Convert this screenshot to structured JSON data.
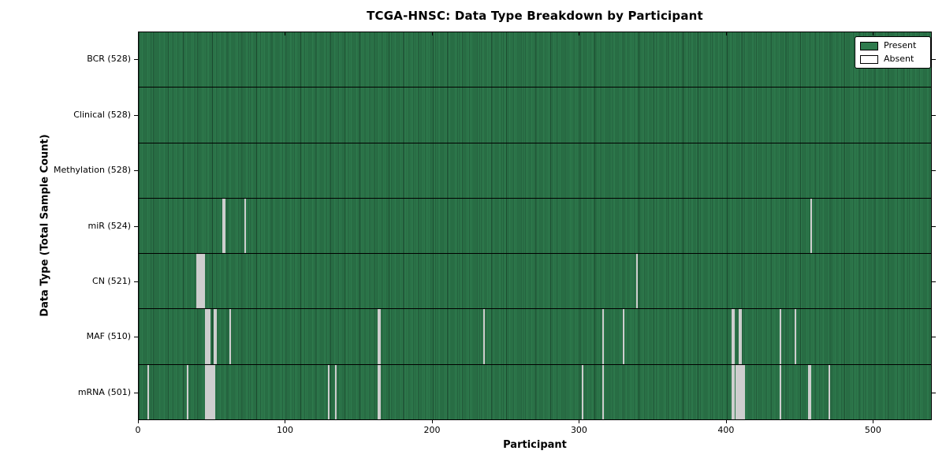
{
  "title": "TCGA-HNSC: Data Type Breakdown by Participant",
  "axes": {
    "xlabel": "Participant",
    "ylabel": "Data Type (Total Sample Count)"
  },
  "legend": {
    "present_label": "Present",
    "absent_label": "Absent",
    "position": "upper right"
  },
  "colors": {
    "present": "#2E7B4D",
    "present_stripe": "#235F3C",
    "absent": "#E3E3E3",
    "frame": "#000000",
    "background": "#FFFFFF"
  },
  "chart_data": {
    "type": "heatmap",
    "title": "TCGA-HNSC: Data Type Breakdown by Participant",
    "xlabel": "Participant",
    "ylabel": "Data Type (Total Sample Count)",
    "x_ticks": [
      0,
      100,
      200,
      300,
      400,
      500
    ],
    "xlim": [
      0,
      540
    ],
    "grid": false,
    "legend_position": "upper right",
    "legend_entries": [
      "Present",
      "Absent"
    ],
    "rows": [
      {
        "name": "BCR",
        "label": "BCR (528)",
        "present_count": 528,
        "absent_indices": []
      },
      {
        "name": "Clinical",
        "label": "Clinical (528)",
        "present_count": 528,
        "absent_indices": []
      },
      {
        "name": "Methylation",
        "label": "Methylation (528)",
        "present_count": 528,
        "absent_indices": []
      },
      {
        "name": "miR",
        "label": "miR (524)",
        "present_count": 524,
        "absent_indices": [
          57,
          58,
          72,
          458
        ]
      },
      {
        "name": "CN",
        "label": "CN (521)",
        "present_count": 521,
        "absent_indices": [
          39,
          40,
          41,
          42,
          43,
          44,
          339
        ]
      },
      {
        "name": "MAF",
        "label": "MAF (510)",
        "present_count": 510,
        "absent_indices": [
          45,
          46,
          47,
          48,
          51,
          52,
          62,
          163,
          164,
          235,
          316,
          330,
          404,
          405,
          409,
          410,
          437,
          447
        ]
      },
      {
        "name": "mRNA",
        "label": "mRNA (501)",
        "present_count": 501,
        "absent_indices": [
          6,
          33,
          45,
          46,
          47,
          48,
          49,
          50,
          51,
          129,
          134,
          163,
          164,
          302,
          316,
          404,
          405,
          407,
          408,
          409,
          410,
          411,
          412,
          437,
          456,
          457,
          470
        ]
      }
    ]
  }
}
